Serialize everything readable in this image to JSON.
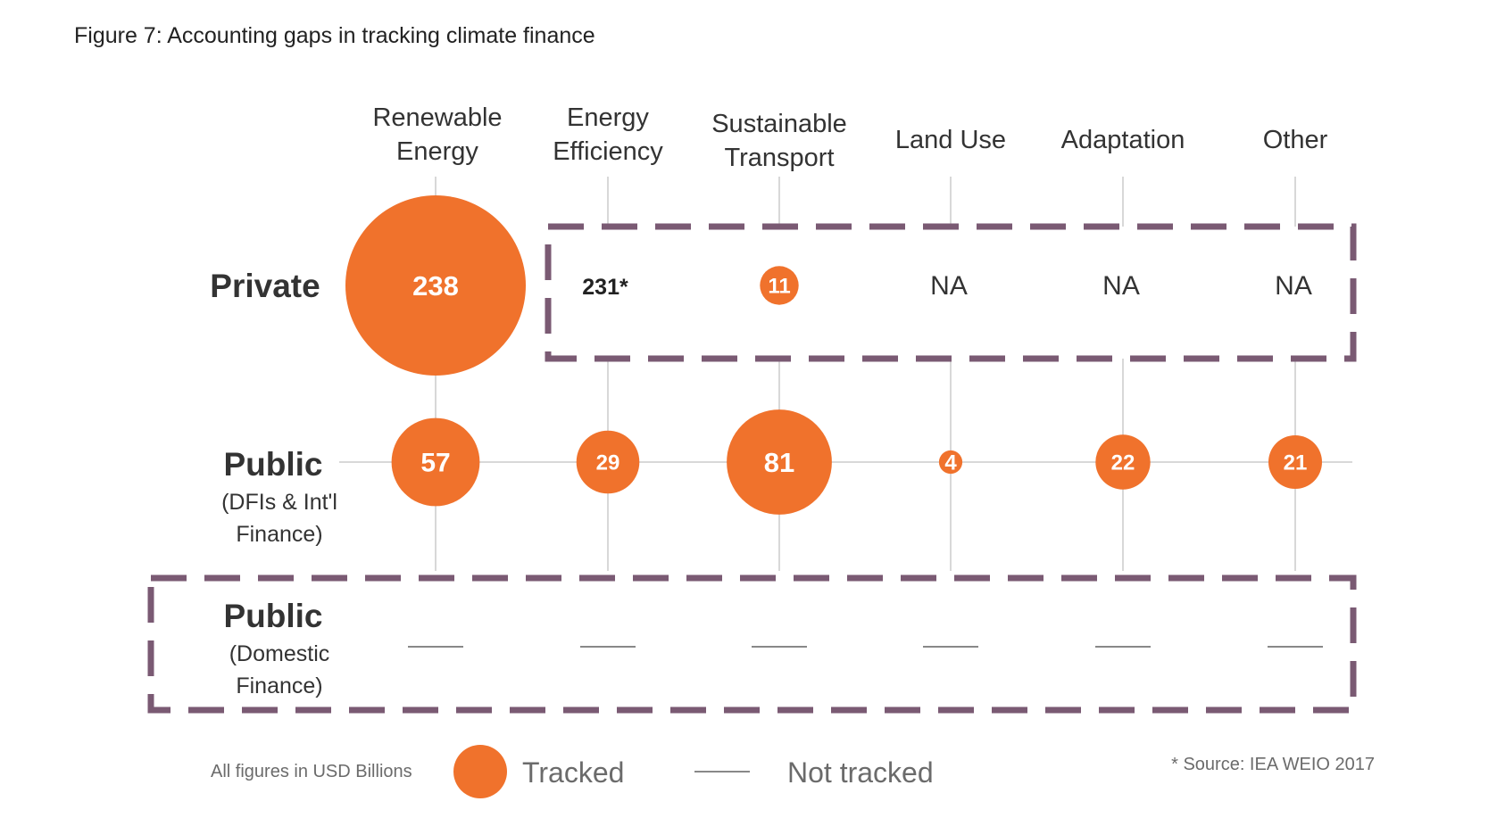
{
  "title": "Figure 7: Accounting gaps in tracking climate finance",
  "colors": {
    "tracked": "#F0722C",
    "box": "#7A5A73",
    "grid": "#CCCCCC",
    "not_tracked": "#888888"
  },
  "columns": [
    [
      "Renewable",
      "Energy"
    ],
    [
      "Energy",
      "Efficiency"
    ],
    [
      "Sustainable",
      "Transport"
    ],
    [
      "Land Use"
    ],
    [
      "Adaptation"
    ],
    [
      "Other"
    ]
  ],
  "rows": [
    {
      "label": "Private",
      "sub": []
    },
    {
      "label": "Public",
      "sub": [
        "(DFIs & Int'l",
        "Finance)"
      ]
    },
    {
      "label": "Public",
      "sub": [
        "(Domestic",
        "Finance)"
      ]
    }
  ],
  "chart_data": {
    "type": "bubble-matrix",
    "unit": "USD Billions",
    "categories": [
      "Renewable Energy",
      "Energy Efficiency",
      "Sustainable Transport",
      "Land Use",
      "Adaptation",
      "Other"
    ],
    "series": [
      {
        "name": "Private",
        "values": [
          238,
          231,
          11,
          null,
          null,
          null
        ],
        "labels": [
          "238",
          "231*",
          "11",
          "NA",
          "NA",
          "NA"
        ],
        "tracked": [
          true,
          false,
          true,
          false,
          false,
          false
        ]
      },
      {
        "name": "Public (DFIs & Int'l Finance)",
        "values": [
          57,
          29,
          81,
          4,
          22,
          21
        ],
        "labels": [
          "57",
          "29",
          "81",
          "4",
          "22",
          "21"
        ],
        "tracked": [
          true,
          true,
          true,
          true,
          true,
          true
        ]
      },
      {
        "name": "Public (Domestic Finance)",
        "values": [
          null,
          null,
          null,
          null,
          null,
          null
        ],
        "labels": [
          "",
          "",
          "",
          "",
          "",
          ""
        ],
        "tracked": [
          false,
          false,
          false,
          false,
          false,
          false
        ]
      }
    ]
  },
  "legend": {
    "units_note": "All figures in USD Billions",
    "tracked": "Tracked",
    "not_tracked": "Not tracked",
    "source": "* Source: IEA WEIO 2017"
  }
}
